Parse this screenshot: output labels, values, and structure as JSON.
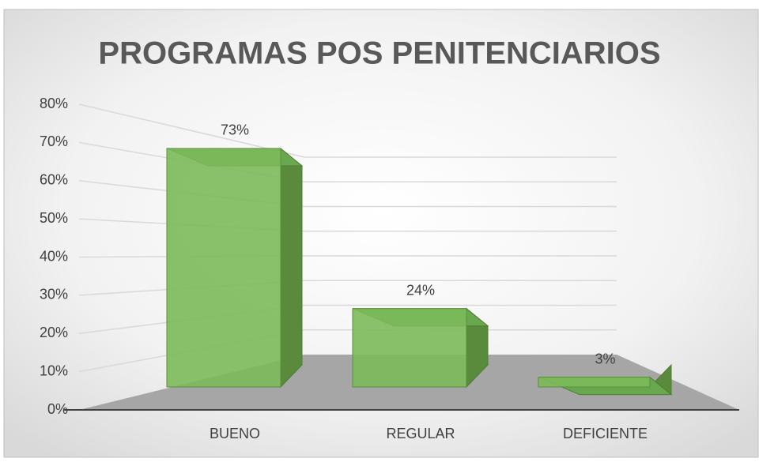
{
  "chart_data": {
    "type": "bar",
    "title": "PROGRAMAS POS PENITENCIARIOS",
    "categories": [
      "BUENO",
      "REGULAR",
      "DEFICIENTE"
    ],
    "values": [
      73,
      24,
      3
    ],
    "value_labels": [
      "73%",
      "24%",
      "3%"
    ],
    "color": "#7cb95a",
    "ylim": [
      0,
      80
    ],
    "yticks": [
      {
        "value": 0,
        "label": "0%"
      },
      {
        "value": 10,
        "label": "10%"
      },
      {
        "value": 20,
        "label": "20%"
      },
      {
        "value": 30,
        "label": "30%"
      },
      {
        "value": 40,
        "label": "40%"
      },
      {
        "value": 50,
        "label": "50%"
      },
      {
        "value": 60,
        "label": "60%"
      },
      {
        "value": 70,
        "label": "70%"
      },
      {
        "value": 80,
        "label": "80%"
      }
    ],
    "grid": true
  }
}
